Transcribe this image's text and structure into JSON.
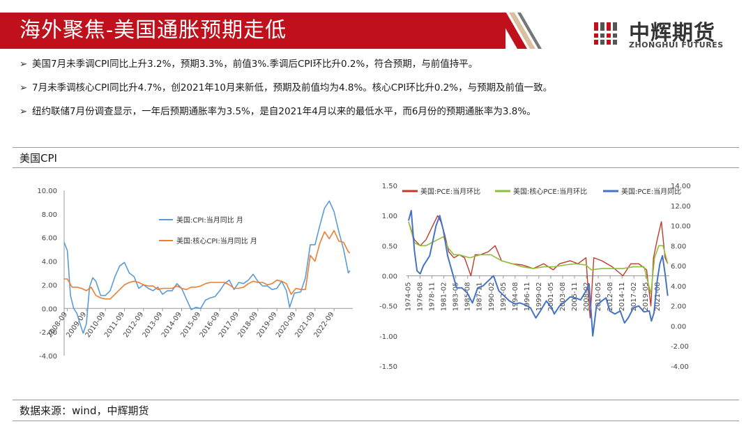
{
  "header": {
    "title": "海外聚焦-美国通胀预期走低",
    "logo_cn": "中辉期货",
    "logo_en": "ZHONGHUI FUTURES"
  },
  "bullets": [
    "美国7月未季调CPI同比上升3.2%，预期3.3%，前值3%.季调后CPI环比升0.2%，符合预期，与前值持平。",
    "7月未季调核心CPI同比升4.7%，创2021年10月来新低，预期及前值均为4.8%。核心CPI环比升0.2%，与预期及前值一致。",
    "纽约联储7月份调查显示，一年后预期通胀率为3.5%，是自2021年4月以来的最低水平，而6月份的预期通胀率为3.8%。"
  ],
  "section_title": "美国CPI",
  "source": "数据来源：wind，中辉期货",
  "colors": {
    "brand_red": "#c0101b",
    "blue": "#5b9bd5",
    "orange": "#ed7d31",
    "red": "#c0392b",
    "green": "#8fbf3a",
    "dark_blue": "#4472c4"
  },
  "chart_data": [
    {
      "type": "line",
      "title": "",
      "xlabel": "",
      "ylabel": "",
      "ylim": [
        -4,
        10
      ],
      "yticks": [
        "10.00",
        "8.00",
        "6.00",
        "4.00",
        "2.00",
        "0.00",
        "-2.00",
        "-4.00"
      ],
      "xticks": [
        "2008-09",
        "2009-09",
        "2010-09",
        "2011-09",
        "2012-09",
        "2013-09",
        "2014-09",
        "2015-09",
        "2016-09",
        "2017-09",
        "2018-09",
        "2019-09",
        "2020-09",
        "2021-09",
        "2022-09"
      ],
      "legend_position": "center-right",
      "series": [
        {
          "name": "美国:CPI:当月同比 月",
          "x": [
            "2008-07",
            "2008-09",
            "2008-11",
            "2009-01",
            "2009-03",
            "2009-05",
            "2009-07",
            "2009-09",
            "2009-11",
            "2010-01",
            "2010-03",
            "2010-06",
            "2010-09",
            "2010-12",
            "2011-03",
            "2011-06",
            "2011-09",
            "2011-12",
            "2012-03",
            "2012-06",
            "2012-09",
            "2012-12",
            "2013-03",
            "2013-06",
            "2013-09",
            "2013-12",
            "2014-03",
            "2014-06",
            "2014-09",
            "2014-12",
            "2015-03",
            "2015-06",
            "2015-09",
            "2015-12",
            "2016-03",
            "2016-06",
            "2016-09",
            "2016-12",
            "2017-03",
            "2017-06",
            "2017-09",
            "2017-12",
            "2018-03",
            "2018-06",
            "2018-09",
            "2018-12",
            "2019-03",
            "2019-06",
            "2019-09",
            "2019-12",
            "2020-03",
            "2020-05",
            "2020-08",
            "2020-12",
            "2021-03",
            "2021-06",
            "2021-09",
            "2021-12",
            "2022-03",
            "2022-06",
            "2022-09",
            "2022-12",
            "2023-03",
            "2023-06",
            "2023-07"
          ],
          "values": [
            5.6,
            4.9,
            1.1,
            0.0,
            -0.4,
            -1.3,
            -2.1,
            -1.3,
            1.8,
            2.6,
            2.3,
            1.1,
            1.1,
            1.5,
            2.7,
            3.6,
            3.9,
            3.0,
            2.7,
            1.7,
            2.0,
            1.7,
            1.5,
            1.8,
            1.2,
            1.5,
            1.5,
            2.1,
            1.7,
            0.8,
            -0.1,
            0.1,
            0.0,
            0.7,
            0.9,
            1.0,
            1.5,
            2.1,
            2.4,
            1.6,
            2.2,
            2.1,
            2.4,
            2.9,
            2.3,
            1.9,
            1.9,
            1.6,
            1.7,
            2.3,
            1.5,
            0.1,
            1.3,
            1.4,
            2.6,
            5.4,
            5.4,
            7.0,
            8.5,
            9.1,
            8.2,
            6.5,
            5.0,
            3.0,
            3.2
          ]
        },
        {
          "name": "美国:核心CPI:当月同比 月",
          "x": [
            "2008-07",
            "2008-09",
            "2008-12",
            "2009-03",
            "2009-06",
            "2009-09",
            "2009-12",
            "2010-03",
            "2010-06",
            "2010-09",
            "2010-12",
            "2011-03",
            "2011-06",
            "2011-09",
            "2011-12",
            "2012-03",
            "2012-06",
            "2012-09",
            "2012-12",
            "2013-03",
            "2013-06",
            "2013-09",
            "2013-12",
            "2014-03",
            "2014-06",
            "2014-09",
            "2014-12",
            "2015-03",
            "2015-06",
            "2015-09",
            "2015-12",
            "2016-03",
            "2016-06",
            "2016-09",
            "2016-12",
            "2017-03",
            "2017-06",
            "2017-09",
            "2017-12",
            "2018-03",
            "2018-06",
            "2018-09",
            "2018-12",
            "2019-03",
            "2019-06",
            "2019-09",
            "2019-12",
            "2020-03",
            "2020-06",
            "2020-09",
            "2020-12",
            "2021-03",
            "2021-06",
            "2021-09",
            "2021-12",
            "2022-03",
            "2022-06",
            "2022-09",
            "2022-12",
            "2023-03",
            "2023-06",
            "2023-07"
          ],
          "values": [
            2.5,
            2.5,
            1.8,
            1.8,
            1.7,
            1.5,
            1.8,
            1.1,
            0.9,
            0.8,
            0.8,
            1.2,
            1.6,
            2.0,
            2.2,
            2.3,
            2.2,
            2.0,
            1.9,
            1.9,
            1.6,
            1.7,
            1.7,
            1.7,
            1.9,
            1.7,
            1.6,
            1.8,
            1.8,
            1.9,
            2.1,
            2.2,
            2.2,
            2.2,
            2.2,
            2.0,
            1.7,
            1.7,
            1.8,
            2.1,
            2.3,
            2.2,
            2.2,
            2.0,
            2.1,
            2.4,
            2.3,
            2.1,
            1.2,
            1.7,
            1.6,
            1.6,
            4.5,
            4.0,
            5.5,
            6.5,
            5.9,
            6.6,
            5.7,
            5.6,
            4.8,
            4.7
          ]
        }
      ]
    },
    {
      "type": "line",
      "title": "",
      "ylim_left": [
        -1.5,
        1.5
      ],
      "ylim_right": [
        -4,
        14
      ],
      "yticks_left": [
        "1.50",
        "1.00",
        "0.50",
        "0.00",
        "-0.50",
        "-1.00",
        "-1.50"
      ],
      "yticks_right": [
        "14.00",
        "12.00",
        "10.00",
        "8.00",
        "6.00",
        "4.00",
        "2.00",
        "0.00",
        "-2.00",
        "-4.00"
      ],
      "xticks": [
        "1974-05",
        "1976-08",
        "1978-11",
        "1981-02",
        "1983-05",
        "1985-08",
        "1987-11",
        "1990-02",
        "1992-05",
        "1994-08",
        "1996-11",
        "1999-02",
        "2001-05",
        "2003-08",
        "2005-11",
        "2008-02",
        "2010-05",
        "2012-08",
        "2014-11",
        "2017-02",
        "2019-05",
        "2021-08"
      ],
      "legend_position": "top",
      "series": [
        {
          "name": "美国:PCE:当月环比",
          "axis": "left",
          "x": [
            1974.4,
            1975.5,
            1976.6,
            1977.7,
            1978.8,
            1979.9,
            1980.5,
            1981.2,
            1982.0,
            1983.0,
            1984.0,
            1985.0,
            1986.2,
            1987.0,
            1988.0,
            1989.5,
            1990.8,
            1992.0,
            1994.0,
            1996.0,
            1998.0,
            2000.0,
            2001.8,
            2003.0,
            2005.0,
            2006.5,
            2008.0,
            2008.8,
            2009.5,
            2011.0,
            2013.0,
            2015.0,
            2016.5,
            2018.0,
            2019.5,
            2020.3,
            2020.8,
            2021.5,
            2022.3,
            2023.0,
            2023.5
          ],
          "values": [
            0.9,
            0.6,
            0.5,
            0.6,
            0.8,
            1.0,
            0.9,
            0.7,
            0.4,
            0.3,
            0.35,
            0.3,
            0.0,
            0.35,
            0.35,
            0.4,
            0.5,
            0.25,
            0.2,
            0.18,
            0.12,
            0.2,
            0.1,
            0.2,
            0.25,
            0.2,
            0.3,
            -0.7,
            0.3,
            0.25,
            0.15,
            0.0,
            0.2,
            0.2,
            0.1,
            -0.5,
            0.3,
            0.6,
            0.9,
            0.3,
            0.2
          ]
        },
        {
          "name": "美国:核心PCE:当月环比",
          "axis": "left",
          "x": [
            1974.4,
            1975.5,
            1976.6,
            1977.7,
            1978.8,
            1979.9,
            1981.0,
            1982.0,
            1983.0,
            1984.0,
            1986.0,
            1988.0,
            1990.0,
            1992.0,
            1994.0,
            1996.0,
            1998.0,
            2000.0,
            2002.0,
            2004.0,
            2006.0,
            2008.0,
            2009.0,
            2011.0,
            2013.0,
            2015.0,
            2017.0,
            2019.0,
            2020.3,
            2021.0,
            2021.8,
            2022.6,
            2023.5
          ],
          "values": [
            0.9,
            0.55,
            0.5,
            0.5,
            0.55,
            0.6,
            0.65,
            0.45,
            0.35,
            0.35,
            0.3,
            0.35,
            0.35,
            0.25,
            0.2,
            0.15,
            0.12,
            0.15,
            0.15,
            0.18,
            0.2,
            0.18,
            0.1,
            0.12,
            0.12,
            0.12,
            0.15,
            0.15,
            -0.3,
            0.3,
            0.5,
            0.5,
            0.2
          ]
        },
        {
          "name": "美国:PCE:当月同比",
          "axis": "right",
          "x": [
            1974.4,
            1974.9,
            1975.5,
            1976.0,
            1976.6,
            1977.2,
            1977.8,
            1978.4,
            1979.0,
            1979.6,
            1980.3,
            1981.0,
            1981.8,
            1982.6,
            1983.5,
            1984.5,
            1985.5,
            1986.5,
            1987.5,
            1988.5,
            1989.5,
            1990.5,
            1991.5,
            1992.5,
            1993.5,
            1994.5,
            1995.5,
            1996.5,
            1997.5,
            1998.5,
            1999.5,
            2000.5,
            2001.5,
            2002.0,
            2003.0,
            2004.0,
            2005.0,
            2006.0,
            2007.0,
            2008.0,
            2008.6,
            2009.3,
            2010.0,
            2011.0,
            2011.8,
            2012.5,
            2013.5,
            2014.5,
            2015.3,
            2016.0,
            2017.0,
            2018.0,
            2019.0,
            2020.0,
            2020.4,
            2020.9,
            2021.5,
            2022.0,
            2022.5,
            2023.0,
            2023.5
          ],
          "values": [
            10.5,
            11.5,
            7.5,
            5.5,
            5.2,
            6.0,
            6.5,
            7.0,
            8.5,
            10.0,
            11.0,
            9.5,
            7.0,
            5.5,
            3.8,
            3.8,
            3.3,
            2.3,
            3.8,
            4.0,
            4.5,
            5.0,
            3.5,
            3.0,
            2.5,
            2.2,
            2.3,
            2.1,
            1.8,
            0.8,
            1.6,
            2.5,
            1.8,
            1.2,
            2.0,
            2.4,
            2.9,
            2.8,
            2.6,
            3.5,
            4.2,
            -1.0,
            2.0,
            2.5,
            2.8,
            1.5,
            1.2,
            1.5,
            0.3,
            0.8,
            1.8,
            2.0,
            1.4,
            1.5,
            0.5,
            1.3,
            4.5,
            6.2,
            7.0,
            5.2,
            3.0
          ]
        }
      ]
    }
  ]
}
